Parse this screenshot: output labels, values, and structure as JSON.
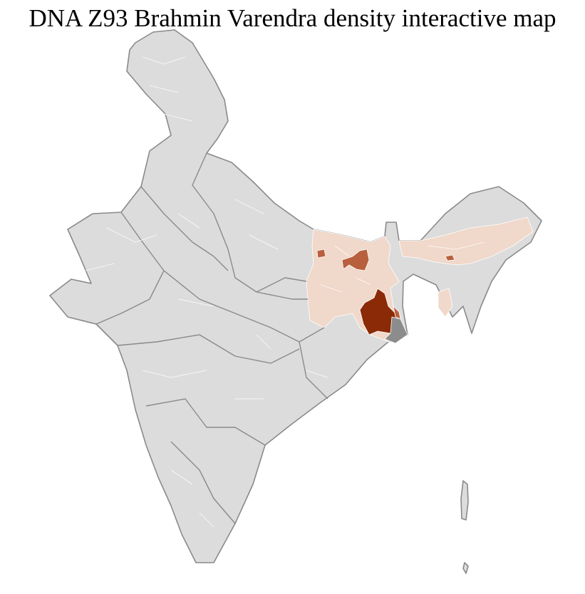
{
  "title": "DNA Z93 Brahmin Varendra density interactive map",
  "colors": {
    "no_data": "#dcdcdc",
    "outline": "#8a8a8a",
    "district_border": "#ffffff",
    "low": "#f0d8ca",
    "medium": "#b8603e",
    "high": "#8b2a06",
    "dark_gray": "#8c8c8c"
  }
}
